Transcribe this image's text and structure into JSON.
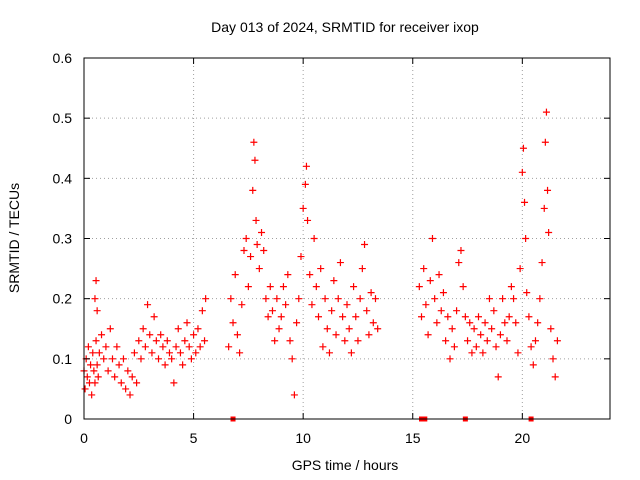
{
  "chart_data": {
    "type": "scatter",
    "title": "Day 013 of 2024, SRMTID for receiver ixop",
    "xlabel": "GPS time / hours",
    "ylabel": "SRMTID / TECUs",
    "xlim": [
      0,
      24
    ],
    "ylim": [
      0,
      0.6
    ],
    "xticks": [
      "0",
      "5",
      "10",
      "15",
      "20"
    ],
    "yticks": [
      "0",
      "0.1",
      "0.2",
      "0.3",
      "0.4",
      "0.5",
      "0.6"
    ],
    "grid": true,
    "marker": "plus",
    "color": "#ff0000",
    "series": [
      {
        "name": "SRMTID",
        "points": [
          [
            0.0,
            0.08
          ],
          [
            0.05,
            0.05
          ],
          [
            0.1,
            0.1
          ],
          [
            0.15,
            0.07
          ],
          [
            0.2,
            0.12
          ],
          [
            0.25,
            0.06
          ],
          [
            0.3,
            0.09
          ],
          [
            0.35,
            0.04
          ],
          [
            0.4,
            0.11
          ],
          [
            0.45,
            0.08
          ],
          [
            0.5,
            0.06
          ],
          [
            0.5,
            0.2
          ],
          [
            0.55,
            0.13
          ],
          [
            0.55,
            0.23
          ],
          [
            0.6,
            0.09
          ],
          [
            0.6,
            0.18
          ],
          [
            0.65,
            0.07
          ],
          [
            0.7,
            0.11
          ],
          [
            0.8,
            0.14
          ],
          [
            0.9,
            0.1
          ],
          [
            1.0,
            0.12
          ],
          [
            1.1,
            0.08
          ],
          [
            1.2,
            0.15
          ],
          [
            1.3,
            0.1
          ],
          [
            1.4,
            0.07
          ],
          [
            1.5,
            0.12
          ],
          [
            1.6,
            0.09
          ],
          [
            1.7,
            0.06
          ],
          [
            1.8,
            0.1
          ],
          [
            1.9,
            0.05
          ],
          [
            2.0,
            0.08
          ],
          [
            2.1,
            0.04
          ],
          [
            2.2,
            0.07
          ],
          [
            2.3,
            0.11
          ],
          [
            2.4,
            0.06
          ],
          [
            2.5,
            0.13
          ],
          [
            2.6,
            0.1
          ],
          [
            2.7,
            0.15
          ],
          [
            2.8,
            0.12
          ],
          [
            2.9,
            0.19
          ],
          [
            3.0,
            0.14
          ],
          [
            3.1,
            0.11
          ],
          [
            3.2,
            0.17
          ],
          [
            3.3,
            0.13
          ],
          [
            3.4,
            0.1
          ],
          [
            3.5,
            0.14
          ],
          [
            3.6,
            0.12
          ],
          [
            3.7,
            0.09
          ],
          [
            3.8,
            0.13
          ],
          [
            3.9,
            0.11
          ],
          [
            4.0,
            0.1
          ],
          [
            4.1,
            0.06
          ],
          [
            4.2,
            0.12
          ],
          [
            4.3,
            0.15
          ],
          [
            4.4,
            0.11
          ],
          [
            4.5,
            0.09
          ],
          [
            4.6,
            0.13
          ],
          [
            4.7,
            0.16
          ],
          [
            4.8,
            0.12
          ],
          [
            4.9,
            0.1
          ],
          [
            5.0,
            0.14
          ],
          [
            5.1,
            0.11
          ],
          [
            5.2,
            0.15
          ],
          [
            5.3,
            0.12
          ],
          [
            5.4,
            0.18
          ],
          [
            5.5,
            0.13
          ],
          [
            5.55,
            0.2
          ],
          [
            6.6,
            0.12
          ],
          [
            6.7,
            0.2
          ],
          [
            6.8,
            0.16
          ],
          [
            6.9,
            0.24
          ],
          [
            7.0,
            0.14
          ],
          [
            7.1,
            0.11
          ],
          [
            7.2,
            0.19
          ],
          [
            7.3,
            0.28
          ],
          [
            7.4,
            0.3
          ],
          [
            7.5,
            0.22
          ],
          [
            7.6,
            0.27
          ],
          [
            7.7,
            0.38
          ],
          [
            7.75,
            0.46
          ],
          [
            7.8,
            0.43
          ],
          [
            7.85,
            0.33
          ],
          [
            7.9,
            0.29
          ],
          [
            8.0,
            0.25
          ],
          [
            8.1,
            0.31
          ],
          [
            8.2,
            0.28
          ],
          [
            8.3,
            0.2
          ],
          [
            8.4,
            0.17
          ],
          [
            8.5,
            0.22
          ],
          [
            8.6,
            0.18
          ],
          [
            8.7,
            0.13
          ],
          [
            8.8,
            0.2
          ],
          [
            8.9,
            0.15
          ],
          [
            9.0,
            0.17
          ],
          [
            9.1,
            0.22
          ],
          [
            9.2,
            0.19
          ],
          [
            9.3,
            0.24
          ],
          [
            9.4,
            0.13
          ],
          [
            9.5,
            0.1
          ],
          [
            9.6,
            0.04
          ],
          [
            9.7,
            0.16
          ],
          [
            9.8,
            0.2
          ],
          [
            9.9,
            0.27
          ],
          [
            10.0,
            0.35
          ],
          [
            10.1,
            0.39
          ],
          [
            10.15,
            0.42
          ],
          [
            10.2,
            0.33
          ],
          [
            10.3,
            0.24
          ],
          [
            10.4,
            0.19
          ],
          [
            10.5,
            0.3
          ],
          [
            10.6,
            0.22
          ],
          [
            10.7,
            0.17
          ],
          [
            10.8,
            0.25
          ],
          [
            10.9,
            0.12
          ],
          [
            11.0,
            0.2
          ],
          [
            11.1,
            0.15
          ],
          [
            11.2,
            0.11
          ],
          [
            11.3,
            0.18
          ],
          [
            11.4,
            0.23
          ],
          [
            11.5,
            0.14
          ],
          [
            11.6,
            0.2
          ],
          [
            11.7,
            0.26
          ],
          [
            11.8,
            0.17
          ],
          [
            11.9,
            0.13
          ],
          [
            12.0,
            0.19
          ],
          [
            12.1,
            0.15
          ],
          [
            12.2,
            0.11
          ],
          [
            12.3,
            0.22
          ],
          [
            12.4,
            0.17
          ],
          [
            12.5,
            0.13
          ],
          [
            12.6,
            0.2
          ],
          [
            12.7,
            0.25
          ],
          [
            12.8,
            0.29
          ],
          [
            12.9,
            0.18
          ],
          [
            13.0,
            0.14
          ],
          [
            13.1,
            0.21
          ],
          [
            13.2,
            0.16
          ],
          [
            13.3,
            0.2
          ],
          [
            13.4,
            0.15
          ],
          [
            15.3,
            0.22
          ],
          [
            15.4,
            0.17
          ],
          [
            15.5,
            0.25
          ],
          [
            15.6,
            0.19
          ],
          [
            15.7,
            0.14
          ],
          [
            15.8,
            0.23
          ],
          [
            15.9,
            0.3
          ],
          [
            16.0,
            0.2
          ],
          [
            16.1,
            0.16
          ],
          [
            16.2,
            0.24
          ],
          [
            16.3,
            0.18
          ],
          [
            16.4,
            0.21
          ],
          [
            16.5,
            0.13
          ],
          [
            16.6,
            0.17
          ],
          [
            16.7,
            0.1
          ],
          [
            16.8,
            0.15
          ],
          [
            16.9,
            0.12
          ],
          [
            17.0,
            0.18
          ],
          [
            17.1,
            0.26
          ],
          [
            17.2,
            0.28
          ],
          [
            17.3,
            0.22
          ],
          [
            17.4,
            0.17
          ],
          [
            17.5,
            0.13
          ],
          [
            17.6,
            0.16
          ],
          [
            17.7,
            0.11
          ],
          [
            17.8,
            0.15
          ],
          [
            17.9,
            0.12
          ],
          [
            18.0,
            0.17
          ],
          [
            18.1,
            0.14
          ],
          [
            18.2,
            0.11
          ],
          [
            18.3,
            0.16
          ],
          [
            18.4,
            0.13
          ],
          [
            18.5,
            0.2
          ],
          [
            18.6,
            0.15
          ],
          [
            18.7,
            0.18
          ],
          [
            18.8,
            0.12
          ],
          [
            18.9,
            0.07
          ],
          [
            19.0,
            0.14
          ],
          [
            19.1,
            0.2
          ],
          [
            19.2,
            0.16
          ],
          [
            19.3,
            0.13
          ],
          [
            19.4,
            0.17
          ],
          [
            19.5,
            0.22
          ],
          [
            19.6,
            0.2
          ],
          [
            19.7,
            0.16
          ],
          [
            19.8,
            0.11
          ],
          [
            19.9,
            0.25
          ],
          [
            20.0,
            0.41
          ],
          [
            20.05,
            0.45
          ],
          [
            20.1,
            0.36
          ],
          [
            20.15,
            0.3
          ],
          [
            20.2,
            0.21
          ],
          [
            20.3,
            0.17
          ],
          [
            20.4,
            0.12
          ],
          [
            20.5,
            0.09
          ],
          [
            20.6,
            0.13
          ],
          [
            20.7,
            0.16
          ],
          [
            20.8,
            0.2
          ],
          [
            20.9,
            0.26
          ],
          [
            21.0,
            0.35
          ],
          [
            21.05,
            0.46
          ],
          [
            21.1,
            0.51
          ],
          [
            21.15,
            0.38
          ],
          [
            21.2,
            0.31
          ],
          [
            21.3,
            0.15
          ],
          [
            21.4,
            0.1
          ],
          [
            21.5,
            0.07
          ],
          [
            21.6,
            0.13
          ]
        ]
      }
    ],
    "bottom_markers_x": [
      6.8,
      15.4,
      15.55,
      17.4,
      20.4
    ]
  }
}
